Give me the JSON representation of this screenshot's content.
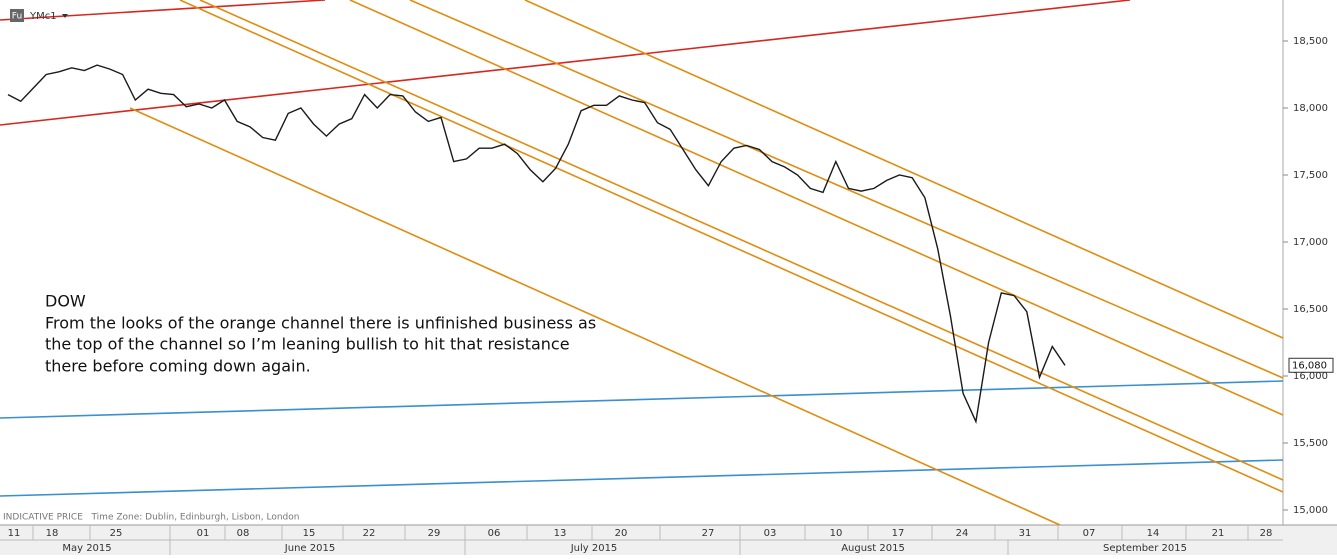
{
  "chart_data": {
    "type": "line",
    "symbol": "YMc1",
    "symbol_icon": "Fu",
    "info": "INDICATIVE PRICE   Time Zone: Dublin, Edinburgh, Lisbon, London",
    "annotation": [
      "DOW",
      "From the looks of the orange channel there is unfinished business as",
      "the top of the channel so I’m leaning bullish to hit that resistance",
      "there before coming down again."
    ],
    "week_labels": [
      "11",
      "18",
      "25",
      "01",
      "08",
      "15",
      "22",
      "29",
      "06",
      "13",
      "20",
      "27",
      "03",
      "10",
      "17",
      "24",
      "31",
      "07",
      "14",
      "21",
      "28"
    ],
    "month_labels": [
      "May 2015",
      "June 2015",
      "July 2015",
      "August 2015",
      "September 2015"
    ],
    "ylim": [
      14888,
      18806
    ],
    "yticks": [
      {
        "value": 15000,
        "label": "15,000"
      },
      {
        "value": 15500,
        "label": "15,500"
      },
      {
        "value": 16000,
        "label": "16,000"
      },
      {
        "value": 16500,
        "label": "16,500"
      },
      {
        "value": 17000,
        "label": "17,000"
      },
      {
        "value": 17500,
        "label": "17,500"
      },
      {
        "value": 18000,
        "label": "18,000"
      },
      {
        "value": 18500,
        "label": "18,500"
      }
    ],
    "last_price": {
      "value": 16080,
      "label": "16,080"
    },
    "series": [
      {
        "color": "#1a1a1a",
        "values": [
          18100,
          18050,
          18150,
          18250,
          18270,
          18300,
          18280,
          18320,
          18290,
          18250,
          18060,
          18140,
          18110,
          18100,
          18010,
          18030,
          18000,
          18060,
          17900,
          17860,
          17780,
          17760,
          17960,
          18000,
          17880,
          17790,
          17880,
          17920,
          18100,
          18000,
          18100,
          18090,
          17970,
          17900,
          17930,
          17600,
          17620,
          17700,
          17700,
          17730,
          17660,
          17540,
          17450,
          17550,
          17730,
          17980,
          18020,
          18020,
          18090,
          18060,
          18040,
          17890,
          17840,
          17690,
          17540,
          17420,
          17600,
          17700,
          17720,
          17690,
          17600,
          17560,
          17500,
          17400,
          17370,
          17600,
          17400,
          17380,
          17400,
          17460,
          17500,
          17480,
          17330,
          16950,
          16450,
          15870,
          15660,
          16250,
          16620,
          16600,
          16480,
          15990,
          16220,
          16080
        ]
      }
    ]
  }
}
